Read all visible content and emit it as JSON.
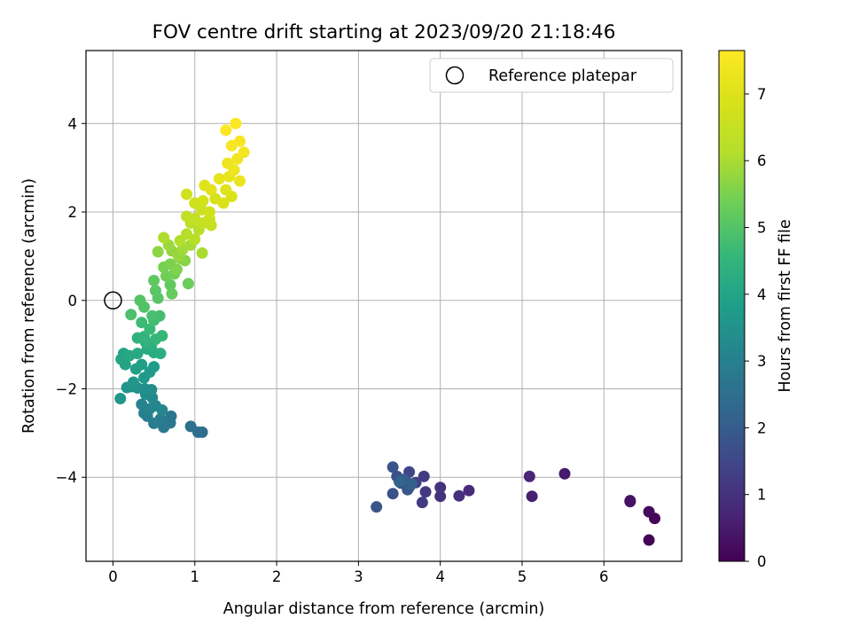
{
  "chart_data": {
    "type": "scatter",
    "title": "FOV centre drift starting at 2023/09/20 21:18:46",
    "xlabel": "Angular distance from reference (arcmin)",
    "ylabel": "Rotation from reference (arcmin)",
    "xlim": [
      -0.33,
      6.95
    ],
    "ylim": [
      -5.9,
      5.65
    ],
    "xticks": [
      0,
      1,
      2,
      3,
      4,
      5,
      6
    ],
    "yticks": [
      -4,
      -2,
      0,
      2,
      4
    ],
    "xtick_labels": [
      "0",
      "1",
      "2",
      "3",
      "4",
      "5",
      "6"
    ],
    "ytick_labels": [
      "−4",
      "−2",
      "0",
      "2",
      "4"
    ],
    "grid": true,
    "legend": {
      "placement": "top-right",
      "entries": [
        "Reference platepar"
      ]
    },
    "reference_point": {
      "x": 0,
      "y": 0,
      "label": "Reference platepar"
    },
    "colorbar": {
      "label": "Hours from first FF file",
      "range": [
        0,
        7.65
      ],
      "ticks": [
        0,
        1,
        2,
        3,
        4,
        5,
        6,
        7
      ],
      "tick_labels": [
        "0",
        "1",
        "2",
        "3",
        "4",
        "5",
        "6",
        "7"
      ],
      "colormap": "viridis"
    },
    "series": [
      {
        "color_by": "hours_from_first_ff_file",
        "points": [
          [
            6.55,
            -5.42,
            0.05
          ],
          [
            6.62,
            -4.93,
            0.1
          ],
          [
            6.55,
            -4.78,
            0.2
          ],
          [
            6.32,
            -4.53,
            0.3
          ],
          [
            6.32,
            -4.55,
            0.35
          ],
          [
            5.52,
            -3.92,
            0.5
          ],
          [
            5.12,
            -4.43,
            0.6
          ],
          [
            5.09,
            -3.98,
            0.7
          ],
          [
            4.35,
            -4.3,
            0.85
          ],
          [
            4.23,
            -4.42,
            0.95
          ],
          [
            4.0,
            -4.43,
            1.0
          ],
          [
            4.0,
            -4.23,
            1.05
          ],
          [
            3.82,
            -4.33,
            1.15
          ],
          [
            3.78,
            -4.57,
            1.2
          ],
          [
            3.8,
            -3.98,
            1.25
          ],
          [
            3.7,
            -4.12,
            1.35
          ],
          [
            3.62,
            -4.22,
            1.4
          ],
          [
            3.62,
            -3.88,
            1.45
          ],
          [
            3.57,
            -4.05,
            1.55
          ],
          [
            3.52,
            -4.13,
            1.6
          ],
          [
            3.47,
            -3.98,
            1.7
          ],
          [
            3.42,
            -4.37,
            1.75
          ],
          [
            3.42,
            -3.77,
            1.8
          ],
          [
            3.22,
            -4.67,
            1.85
          ],
          [
            3.6,
            -4.28,
            1.9
          ],
          [
            3.55,
            -4.05,
            2.0
          ],
          [
            3.65,
            -4.15,
            2.1
          ],
          [
            3.5,
            -4.1,
            2.2
          ],
          [
            1.09,
            -2.98,
            2.45
          ],
          [
            1.04,
            -2.98,
            2.5
          ],
          [
            0.95,
            -2.85,
            2.55
          ],
          [
            0.71,
            -2.62,
            2.7
          ],
          [
            0.7,
            -2.77,
            2.75
          ],
          [
            0.62,
            -2.87,
            2.8
          ],
          [
            0.58,
            -2.68,
            2.85
          ],
          [
            0.5,
            -2.78,
            2.9
          ],
          [
            0.42,
            -2.62,
            2.95
          ],
          [
            0.38,
            -2.55,
            3.0
          ],
          [
            0.35,
            -2.35,
            3.05
          ],
          [
            0.45,
            -2.45,
            3.1
          ],
          [
            0.52,
            -2.38,
            3.15
          ],
          [
            0.6,
            -2.48,
            3.2
          ],
          [
            0.48,
            -2.2,
            3.25
          ],
          [
            0.4,
            -2.12,
            3.3
          ],
          [
            0.47,
            -2.02,
            3.35
          ],
          [
            0.39,
            -2.0,
            3.4
          ],
          [
            0.3,
            -1.98,
            3.45
          ],
          [
            0.22,
            -1.95,
            3.5
          ],
          [
            0.17,
            -1.97,
            3.55
          ],
          [
            0.09,
            -2.22,
            3.6
          ],
          [
            0.25,
            -1.85,
            3.65
          ],
          [
            0.38,
            -1.75,
            3.7
          ],
          [
            0.45,
            -1.62,
            3.75
          ],
          [
            0.5,
            -1.5,
            3.8
          ],
          [
            0.35,
            -1.45,
            3.85
          ],
          [
            0.28,
            -1.55,
            3.9
          ],
          [
            0.15,
            -1.45,
            3.95
          ],
          [
            0.1,
            -1.33,
            4.0
          ],
          [
            0.13,
            -1.2,
            4.05
          ],
          [
            0.2,
            -1.25,
            4.1
          ],
          [
            0.3,
            -1.2,
            4.15
          ],
          [
            0.42,
            -1.1,
            4.2
          ],
          [
            0.5,
            -1.18,
            4.25
          ],
          [
            0.58,
            -1.2,
            4.3
          ],
          [
            0.47,
            -1.0,
            4.35
          ],
          [
            0.4,
            -0.95,
            4.4
          ],
          [
            0.3,
            -0.85,
            4.45
          ],
          [
            0.38,
            -0.82,
            4.5
          ],
          [
            0.52,
            -0.88,
            4.55
          ],
          [
            0.6,
            -0.8,
            4.6
          ],
          [
            0.45,
            -0.65,
            4.65
          ],
          [
            0.35,
            -0.5,
            4.7
          ],
          [
            0.5,
            -0.45,
            4.75
          ],
          [
            0.57,
            -0.35,
            4.8
          ],
          [
            0.48,
            -0.35,
            4.85
          ],
          [
            0.22,
            -0.32,
            4.9
          ],
          [
            0.38,
            -0.15,
            4.95
          ],
          [
            0.33,
            0.0,
            5.0
          ],
          [
            0.55,
            0.05,
            5.05
          ],
          [
            0.52,
            0.22,
            5.1
          ],
          [
            0.5,
            0.45,
            5.15
          ],
          [
            0.7,
            0.35,
            5.2
          ],
          [
            0.72,
            0.15,
            5.25
          ],
          [
            0.92,
            0.38,
            5.3
          ],
          [
            0.65,
            0.55,
            5.35
          ],
          [
            0.75,
            0.6,
            5.4
          ],
          [
            0.62,
            0.75,
            5.45
          ],
          [
            0.7,
            0.82,
            5.5
          ],
          [
            0.78,
            0.7,
            5.55
          ],
          [
            0.82,
            0.95,
            5.6
          ],
          [
            0.88,
            0.9,
            5.65
          ],
          [
            0.55,
            1.1,
            5.7
          ],
          [
            0.72,
            1.12,
            5.75
          ],
          [
            0.8,
            1.0,
            5.8
          ],
          [
            0.68,
            1.25,
            5.85
          ],
          [
            0.85,
            1.15,
            5.9
          ],
          [
            0.95,
            1.25,
            5.95
          ],
          [
            1.09,
            1.07,
            6.0
          ],
          [
            0.62,
            1.42,
            6.05
          ],
          [
            0.82,
            1.35,
            6.1
          ],
          [
            0.9,
            1.5,
            6.15
          ],
          [
            1.0,
            1.38,
            6.2
          ],
          [
            1.05,
            1.6,
            6.25
          ],
          [
            0.95,
            1.75,
            6.3
          ],
          [
            0.9,
            1.9,
            6.35
          ],
          [
            1.0,
            1.85,
            6.4
          ],
          [
            1.1,
            1.75,
            6.45
          ],
          [
            1.2,
            1.7,
            6.5
          ],
          [
            1.18,
            1.85,
            6.55
          ],
          [
            1.08,
            2.05,
            6.6
          ],
          [
            1.0,
            2.2,
            6.65
          ],
          [
            0.9,
            2.4,
            6.7
          ],
          [
            1.18,
            2.0,
            6.75
          ],
          [
            1.1,
            2.25,
            6.8
          ],
          [
            1.25,
            2.3,
            6.85
          ],
          [
            1.35,
            2.2,
            6.9
          ],
          [
            1.45,
            2.35,
            6.95
          ],
          [
            1.38,
            2.5,
            7.0
          ],
          [
            1.12,
            2.6,
            7.05
          ],
          [
            1.2,
            2.5,
            7.1
          ],
          [
            1.3,
            2.75,
            7.15
          ],
          [
            1.42,
            2.8,
            7.2
          ],
          [
            1.55,
            2.7,
            7.25
          ],
          [
            1.48,
            2.95,
            7.3
          ],
          [
            1.4,
            3.1,
            7.35
          ],
          [
            1.52,
            3.2,
            7.4
          ],
          [
            1.6,
            3.35,
            7.45
          ],
          [
            1.45,
            3.5,
            7.5
          ],
          [
            1.55,
            3.6,
            7.55
          ],
          [
            1.38,
            3.85,
            7.6
          ],
          [
            1.5,
            4.0,
            7.62
          ]
        ]
      }
    ]
  }
}
